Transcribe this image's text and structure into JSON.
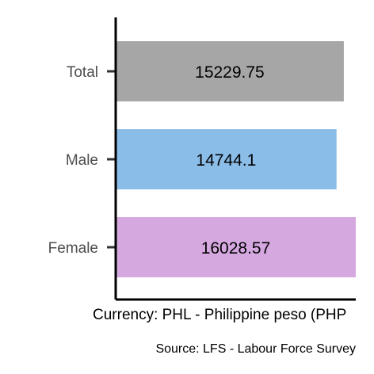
{
  "chart_data": {
    "type": "bar",
    "orientation": "horizontal",
    "categories": [
      "Total",
      "Male",
      "Female"
    ],
    "values": [
      15229.75,
      14744.1,
      16028.57
    ],
    "data_labels": [
      "15229.75",
      "14744.1",
      "16028.57"
    ],
    "colors": [
      "#a6a6a6",
      "#8bbde9",
      "#d6a8e0"
    ],
    "xlabel": "Currency: PHL - Philippine peso (PHP",
    "ylabel": "",
    "title": "",
    "caption": "Source:  LFS - Labour Force Survey",
    "xlim": [
      0,
      16028.57
    ],
    "grid": false,
    "legend": "none"
  }
}
